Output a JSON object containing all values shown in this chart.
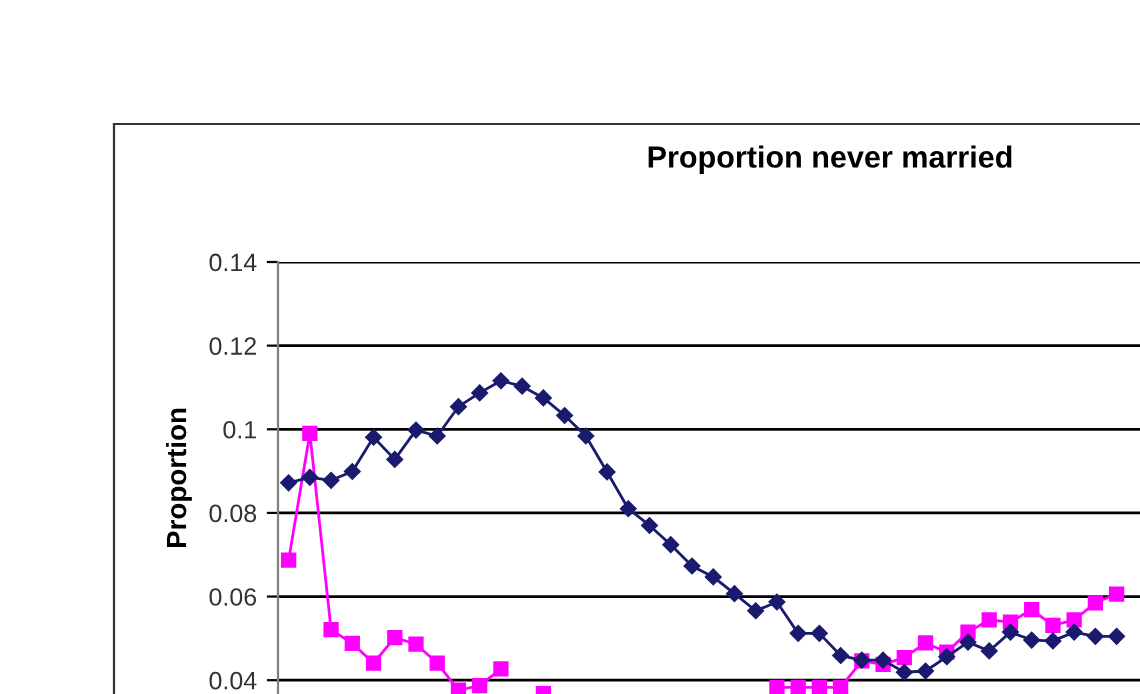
{
  "chart_data": {
    "type": "line",
    "title": "Proportion never married",
    "ylabel": "Proportion",
    "categories": [
      null,
      null,
      null,
      null,
      null,
      null,
      null,
      null,
      null,
      null,
      null,
      null,
      null,
      null,
      null,
      null,
      null,
      null,
      null,
      null,
      null,
      null,
      null,
      null,
      null,
      null,
      null,
      null,
      null,
      null,
      null,
      null,
      null,
      null,
      null,
      null,
      null,
      null,
      null,
      null,
      null,
      null,
      null,
      null,
      null,
      null,
      null,
      null,
      null,
      null,
      null,
      null
    ],
    "series": [
      {
        "color": "#1a1a6e",
        "marker": "diamond",
        "values": [
          0.0872,
          0.0885,
          0.0878,
          0.0899,
          0.0981,
          0.0928,
          0.0998,
          0.0984,
          0.1054,
          0.1087,
          0.1116,
          0.1103,
          0.1075,
          0.1033,
          0.0984,
          0.0898,
          0.081,
          0.077,
          0.0724,
          0.0673,
          0.0647,
          0.0607,
          0.0566,
          0.0587,
          0.0512,
          0.0512,
          0.0459,
          0.0448,
          0.0448,
          0.0419,
          0.0422,
          0.0456,
          0.0491,
          0.047,
          0.0515,
          0.0496,
          0.0494,
          0.0515,
          0.0505,
          0.0505,
          null,
          null,
          null,
          null,
          null,
          null,
          null,
          null,
          null,
          null,
          null,
          null
        ]
      },
      {
        "color": "#ff00ff",
        "marker": "square",
        "values": [
          0.0687,
          0.099,
          0.0521,
          0.0488,
          0.0441,
          0.0502,
          0.0486,
          0.0441,
          0.0376,
          0.0387,
          0.0427,
          null,
          0.0368,
          null,
          null,
          null,
          null,
          null,
          null,
          null,
          null,
          null,
          null,
          0.0383,
          0.0383,
          0.0383,
          0.0383,
          0.0446,
          0.0438,
          0.0454,
          0.0489,
          0.0467,
          0.0515,
          0.0544,
          0.0539,
          0.0569,
          0.0531,
          0.0544,
          0.0585,
          0.0606,
          null,
          null,
          null,
          null,
          null,
          null,
          null,
          null,
          null,
          null,
          null,
          null
        ]
      }
    ],
    "ylim": [
      0.0367,
      0.14
    ],
    "yticks": [
      0.04,
      0.06,
      0.08,
      0.1,
      0.12,
      0.14
    ],
    "grid": "y",
    "tick_labels": "y"
  }
}
